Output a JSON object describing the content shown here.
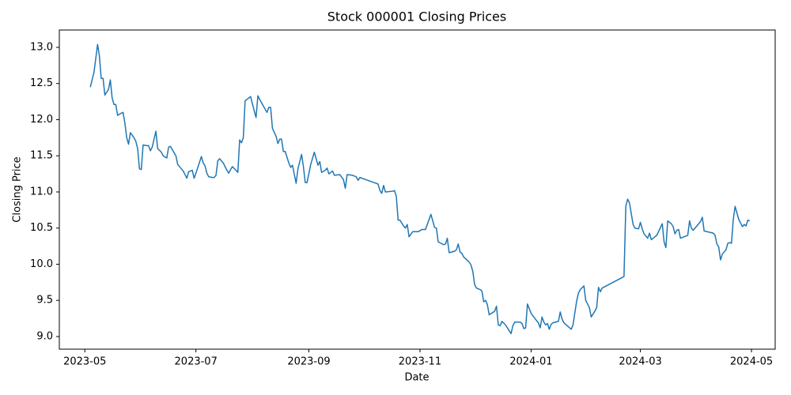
{
  "chart_data": {
    "type": "line",
    "title": "Stock 000001 Closing Prices",
    "x_label": "Date",
    "y_label": "Closing Price",
    "color": "#1f77b4",
    "grid": false,
    "xlim": [
      "2023-04-17",
      "2024-05-14"
    ],
    "xticks": [
      {
        "value": "2023-05-01",
        "label": "2023-05"
      },
      {
        "value": "2023-07-01",
        "label": "2023-07"
      },
      {
        "value": "2023-09-01",
        "label": "2023-09"
      },
      {
        "value": "2023-11-01",
        "label": "2023-11"
      },
      {
        "value": "2024-01-01",
        "label": "2024-01"
      },
      {
        "value": "2024-03-01",
        "label": "2024-03"
      },
      {
        "value": "2024-05-01",
        "label": "2024-05"
      }
    ],
    "ylim": [
      8.825,
      13.24
    ],
    "yticks": [
      {
        "value": 9,
        "label": "9.0"
      },
      {
        "value": 9.5,
        "label": "9.5"
      },
      {
        "value": 10,
        "label": "10.0"
      },
      {
        "value": 10.5,
        "label": "10.5"
      },
      {
        "value": 11,
        "label": "11.0"
      },
      {
        "value": 11.5,
        "label": "11.5"
      },
      {
        "value": 12,
        "label": "12.0"
      },
      {
        "value": 12.5,
        "label": "12.5"
      },
      {
        "value": 13,
        "label": "13.0"
      }
    ],
    "x": [
      "2023-05-04",
      "2023-05-06",
      "2023-05-08",
      "2023-05-09",
      "2023-05-10",
      "2023-05-11",
      "2023-05-12",
      "2023-05-14",
      "2023-05-15",
      "2023-05-16",
      "2023-05-17",
      "2023-05-18",
      "2023-05-19",
      "2023-05-21",
      "2023-05-22",
      "2023-05-23",
      "2023-05-24",
      "2023-05-25",
      "2023-05-26",
      "2023-05-28",
      "2023-05-29",
      "2023-05-30",
      "2023-05-31",
      "2023-06-01",
      "2023-06-02",
      "2023-06-04",
      "2023-06-05",
      "2023-06-06",
      "2023-06-07",
      "2023-06-09",
      "2023-06-10",
      "2023-06-12",
      "2023-06-13",
      "2023-06-15",
      "2023-06-16",
      "2023-06-17",
      "2023-06-20",
      "2023-06-21",
      "2023-06-22",
      "2023-06-24",
      "2023-06-26",
      "2023-06-27",
      "2023-06-29",
      "2023-06-30",
      "2023-07-01",
      "2023-07-04",
      "2023-07-05",
      "2023-07-06",
      "2023-07-07",
      "2023-07-08",
      "2023-07-10",
      "2023-07-11",
      "2023-07-12",
      "2023-07-13",
      "2023-07-14",
      "2023-07-16",
      "2023-07-18",
      "2023-07-19",
      "2023-07-20",
      "2023-07-21",
      "2023-07-23",
      "2023-07-24",
      "2023-07-25",
      "2023-07-26",
      "2023-07-27",
      "2023-07-28",
      "2023-07-29",
      "2023-07-31",
      "2023-08-02",
      "2023-08-03",
      "2023-08-04",
      "2023-08-05",
      "2023-08-07",
      "2023-08-09",
      "2023-08-10",
      "2023-08-11",
      "2023-08-12",
      "2023-08-14",
      "2023-08-15",
      "2023-08-16",
      "2023-08-17",
      "2023-08-18",
      "2023-08-19",
      "2023-08-21",
      "2023-08-22",
      "2023-08-23",
      "2023-08-25",
      "2023-08-26",
      "2023-08-28",
      "2023-08-29",
      "2023-08-30",
      "2023-08-31",
      "2023-09-02",
      "2023-09-04",
      "2023-09-06",
      "2023-09-07",
      "2023-09-08",
      "2023-09-10",
      "2023-09-11",
      "2023-09-12",
      "2023-09-14",
      "2023-09-15",
      "2023-09-18",
      "2023-09-20",
      "2023-09-21",
      "2023-09-22",
      "2023-09-25",
      "2023-09-27",
      "2023-09-28",
      "2023-09-29",
      "2023-10-09",
      "2023-10-10",
      "2023-10-11",
      "2023-10-12",
      "2023-10-13",
      "2023-10-17",
      "2023-10-18",
      "2023-10-19",
      "2023-10-20",
      "2023-10-21",
      "2023-10-23",
      "2023-10-24",
      "2023-10-25",
      "2023-10-26",
      "2023-10-28",
      "2023-10-31",
      "2023-11-02",
      "2023-11-04",
      "2023-11-07",
      "2023-11-09",
      "2023-11-10",
      "2023-11-11",
      "2023-11-14",
      "2023-11-15",
      "2023-11-16",
      "2023-11-17",
      "2023-11-20",
      "2023-11-21",
      "2023-11-22",
      "2023-11-23",
      "2023-11-24",
      "2023-11-25",
      "2023-11-28",
      "2023-11-29",
      "2023-11-30",
      "2023-12-01",
      "2023-12-02",
      "2023-12-04",
      "2023-12-05",
      "2023-12-06",
      "2023-12-07",
      "2023-12-08",
      "2023-12-09",
      "2023-12-12",
      "2023-12-13",
      "2023-12-14",
      "2023-12-15",
      "2023-12-16",
      "2023-12-18",
      "2023-12-20",
      "2023-12-21",
      "2023-12-22",
      "2023-12-23",
      "2023-12-26",
      "2023-12-27",
      "2023-12-28",
      "2023-12-29",
      "2023-12-30",
      "2024-01-01",
      "2024-01-04",
      "2024-01-05",
      "2024-01-06",
      "2024-01-07",
      "2024-01-08",
      "2024-01-09",
      "2024-01-10",
      "2024-01-11",
      "2024-01-12",
      "2024-01-13",
      "2024-01-16",
      "2024-01-17",
      "2024-01-18",
      "2024-01-19",
      "2024-01-23",
      "2024-01-24",
      "2024-01-26",
      "2024-01-27",
      "2024-01-28",
      "2024-01-30",
      "2024-01-31",
      "2024-02-01",
      "2024-02-02",
      "2024-02-03",
      "2024-02-05",
      "2024-02-06",
      "2024-02-07",
      "2024-02-08",
      "2024-02-09",
      "2024-02-21",
      "2024-02-22",
      "2024-02-23",
      "2024-02-24",
      "2024-02-26",
      "2024-02-27",
      "2024-02-29",
      "2024-03-01",
      "2024-03-02",
      "2024-03-03",
      "2024-03-05",
      "2024-03-06",
      "2024-03-07",
      "2024-03-08",
      "2024-03-09",
      "2024-03-10",
      "2024-03-13",
      "2024-03-14",
      "2024-03-15",
      "2024-03-16",
      "2024-03-18",
      "2024-03-19",
      "2024-03-20",
      "2024-03-21",
      "2024-03-22",
      "2024-03-23",
      "2024-03-26",
      "2024-03-27",
      "2024-03-28",
      "2024-03-29",
      "2024-03-30",
      "2024-04-01",
      "2024-04-03",
      "2024-04-04",
      "2024-04-05",
      "2024-04-10",
      "2024-04-11",
      "2024-04-12",
      "2024-04-13",
      "2024-04-14",
      "2024-04-15",
      "2024-04-17",
      "2024-04-18",
      "2024-04-19",
      "2024-04-20",
      "2024-04-21",
      "2024-04-22",
      "2024-04-23",
      "2024-04-24",
      "2024-04-25",
      "2024-04-26",
      "2024-04-27",
      "2024-04-28",
      "2024-04-29",
      "2024-04-30"
    ],
    "values": [
      12.45,
      12.65,
      13.04,
      12.88,
      12.57,
      12.57,
      12.34,
      12.42,
      12.55,
      12.3,
      12.21,
      12.21,
      12.06,
      12.09,
      12.1,
      11.95,
      11.75,
      11.66,
      11.82,
      11.75,
      11.7,
      11.6,
      11.32,
      11.31,
      11.65,
      11.64,
      11.64,
      11.57,
      11.62,
      11.84,
      11.6,
      11.55,
      11.5,
      11.47,
      11.62,
      11.63,
      11.5,
      11.38,
      11.35,
      11.29,
      11.19,
      11.28,
      11.3,
      11.19,
      11.26,
      11.49,
      11.4,
      11.36,
      11.26,
      11.21,
      11.2,
      11.2,
      11.23,
      11.43,
      11.46,
      11.4,
      11.3,
      11.26,
      11.31,
      11.35,
      11.3,
      11.27,
      11.72,
      11.68,
      11.75,
      12.26,
      12.28,
      12.32,
      12.12,
      12.03,
      12.33,
      12.28,
      12.19,
      12.1,
      12.17,
      12.17,
      11.88,
      11.77,
      11.67,
      11.73,
      11.73,
      11.56,
      11.56,
      11.4,
      11.34,
      11.37,
      11.12,
      11.32,
      11.52,
      11.35,
      11.13,
      11.13,
      11.38,
      11.55,
      11.37,
      11.42,
      11.27,
      11.3,
      11.33,
      11.25,
      11.29,
      11.23,
      11.24,
      11.17,
      11.05,
      11.24,
      11.23,
      11.21,
      11.16,
      11.2,
      11.11,
      11.02,
      10.98,
      11.09,
      11.0,
      11.01,
      11.02,
      10.94,
      10.61,
      10.61,
      10.53,
      10.5,
      10.55,
      10.38,
      10.45,
      10.45,
      10.48,
      10.48,
      10.69,
      10.51,
      10.5,
      10.31,
      10.27,
      10.28,
      10.36,
      10.16,
      10.18,
      10.2,
      10.28,
      10.17,
      10.15,
      10.1,
      10.03,
      9.99,
      9.9,
      9.72,
      9.67,
      9.65,
      9.63,
      9.48,
      9.5,
      9.44,
      9.3,
      9.35,
      9.42,
      9.16,
      9.15,
      9.21,
      9.16,
      9.08,
      9.04,
      9.15,
      9.2,
      9.2,
      9.18,
      9.11,
      9.12,
      9.45,
      9.32,
      9.22,
      9.19,
      9.12,
      9.27,
      9.2,
      9.16,
      9.18,
      9.1,
      9.17,
      9.19,
      9.21,
      9.34,
      9.24,
      9.19,
      9.1,
      9.16,
      9.49,
      9.6,
      9.65,
      9.7,
      9.5,
      9.45,
      9.4,
      9.27,
      9.35,
      9.4,
      9.68,
      9.62,
      9.67,
      9.83,
      10.8,
      10.9,
      10.85,
      10.55,
      10.5,
      10.49,
      10.58,
      10.49,
      10.42,
      10.36,
      10.43,
      10.34,
      10.36,
      10.38,
      10.4,
      10.56,
      10.31,
      10.23,
      10.6,
      10.56,
      10.52,
      10.42,
      10.47,
      10.48,
      10.36,
      10.39,
      10.4,
      10.6,
      10.5,
      10.47,
      10.53,
      10.59,
      10.65,
      10.46,
      10.43,
      10.4,
      10.28,
      10.24,
      10.06,
      10.14,
      10.2,
      10.29,
      10.3,
      10.29,
      10.62,
      10.8,
      10.71,
      10.62,
      10.57,
      10.52,
      10.55,
      10.53,
      10.61,
      10.6
    ]
  }
}
